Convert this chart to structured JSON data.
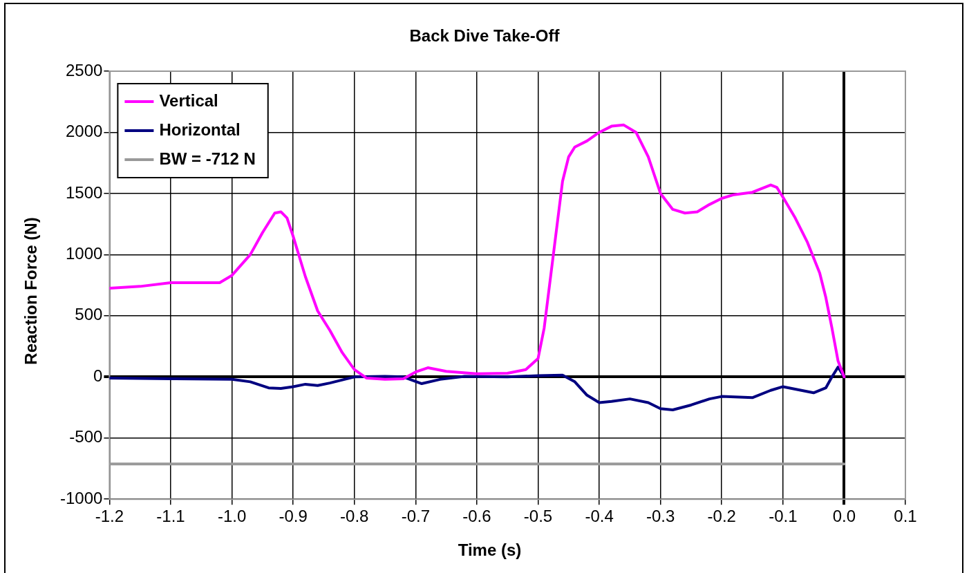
{
  "chart_data": {
    "type": "line",
    "title": "Back Dive Take-Off",
    "xlabel": "Time (s)",
    "ylabel": "Reaction Force (N)",
    "xlim": [
      -1.2,
      0.1
    ],
    "xticks": [
      -1.2,
      -1.1,
      {
        "value": -1.0,
        "label": "-1.0"
      },
      -0.9,
      -0.8,
      -0.7,
      -0.6,
      -0.5,
      -0.4,
      -0.3,
      -0.2,
      -0.1,
      {
        "value": 0,
        "label": "0.0"
      },
      0.1
    ],
    "ylim": [
      -1000,
      2500
    ],
    "yticks": [
      -1000,
      -500,
      0,
      500,
      1000,
      1500,
      2000,
      2500
    ],
    "grid": true,
    "legend": "top left",
    "marker": "none",
    "line_style": "solid",
    "series": [
      {
        "name": "Vertical",
        "color": "#ff00ff",
        "x": [
          -1.2,
          -1.15,
          -1.1,
          -1.05,
          -1.02,
          -1.0,
          -0.97,
          -0.95,
          -0.93,
          -0.92,
          -0.91,
          -0.9,
          -0.88,
          -0.86,
          -0.84,
          -0.82,
          -0.8,
          -0.78,
          -0.75,
          -0.72,
          -0.7,
          -0.68,
          -0.65,
          -0.6,
          -0.55,
          -0.52,
          -0.5,
          -0.49,
          -0.48,
          -0.47,
          -0.46,
          -0.45,
          -0.44,
          -0.42,
          -0.4,
          -0.38,
          -0.36,
          -0.34,
          -0.32,
          -0.3,
          -0.28,
          -0.26,
          -0.24,
          -0.22,
          -0.2,
          -0.18,
          -0.15,
          -0.12,
          -0.11,
          -0.1,
          -0.08,
          -0.06,
          -0.04,
          -0.03,
          -0.02,
          -0.01,
          0
        ],
        "values": [
          725,
          740,
          770,
          770,
          770,
          830,
          1000,
          1180,
          1340,
          1350,
          1300,
          1150,
          820,
          540,
          380,
          200,
          60,
          -10,
          -20,
          -15,
          40,
          75,
          45,
          25,
          30,
          60,
          150,
          400,
          800,
          1200,
          1600,
          1800,
          1880,
          1930,
          2000,
          2050,
          2060,
          2000,
          1800,
          1500,
          1370,
          1340,
          1350,
          1410,
          1460,
          1490,
          1510,
          1570,
          1550,
          1470,
          1300,
          1100,
          850,
          650,
          400,
          130,
          0
        ]
      },
      {
        "name": "Horizontal",
        "color": "#000080",
        "x": [
          -1.2,
          -1.1,
          -1.0,
          -0.97,
          -0.94,
          -0.92,
          -0.9,
          -0.88,
          -0.86,
          -0.84,
          -0.8,
          -0.75,
          -0.72,
          -0.69,
          -0.66,
          -0.62,
          -0.55,
          -0.5,
          -0.46,
          -0.44,
          -0.42,
          -0.4,
          -0.38,
          -0.35,
          -0.32,
          -0.3,
          -0.28,
          -0.25,
          -0.22,
          -0.2,
          -0.15,
          -0.12,
          -0.1,
          -0.07,
          -0.05,
          -0.03,
          -0.02,
          -0.01,
          0
        ],
        "values": [
          -10,
          -15,
          -20,
          -40,
          -90,
          -95,
          -80,
          -60,
          -70,
          -50,
          0,
          5,
          0,
          -55,
          -20,
          5,
          0,
          10,
          15,
          -40,
          -150,
          -210,
          -200,
          -180,
          -210,
          -260,
          -270,
          -230,
          -180,
          -160,
          -170,
          -110,
          -80,
          -110,
          -130,
          -90,
          0,
          80,
          0
        ]
      },
      {
        "name": "BW = -712 N",
        "color": "#999999",
        "x": [
          -1.2,
          0
        ],
        "values": [
          -712,
          -712
        ]
      }
    ]
  }
}
